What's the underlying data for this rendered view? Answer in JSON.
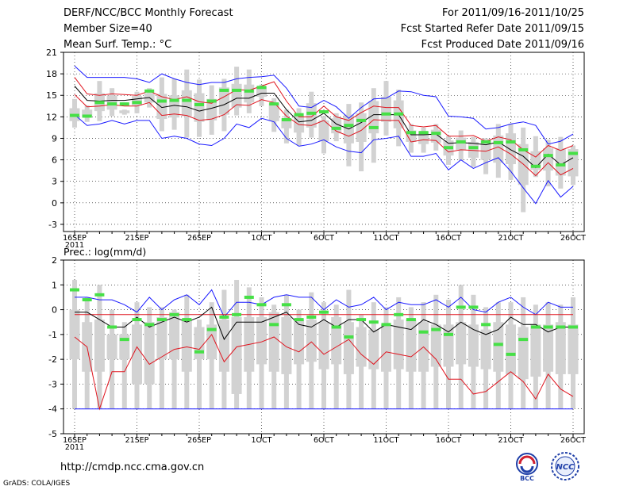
{
  "header": {
    "title": "DERF/NCC/BCC Monthly Forecast",
    "member_size": "Member Size=40",
    "variable": "Mean Surf. Temp.: °C",
    "period": "For 2011/09/16-2011/10/25",
    "refer_date": "Fcst Started Refer Date 2011/09/15",
    "produced_date": "Fcst Produced Date 2011/09/16"
  },
  "footer": {
    "url": "http://cmdp.ncc.cma.gov.cn",
    "grads": "GrADS: COLA/IGES",
    "logo_left": "BCC",
    "logo_right": "NCC"
  },
  "colors": {
    "max_min": "#1a1aff",
    "spread": "#e0141e",
    "mean": "#000000",
    "obs": "#46e046",
    "box": "#d2d2d2"
  },
  "chart_data": [
    {
      "type": "line",
      "title": "Mean Surf. Temp.: °C",
      "ylim": [
        -4,
        21
      ],
      "yticks": [
        21,
        18,
        15,
        12,
        9,
        6,
        3,
        0,
        -3
      ],
      "xticks": [
        {
          "day": 0,
          "label": "16SEP"
        },
        {
          "day": 5,
          "label": "21SEP"
        },
        {
          "day": 10,
          "label": "26SEP"
        },
        {
          "day": 15,
          "label": "1OCT"
        },
        {
          "day": 20,
          "label": "6OCT"
        },
        {
          "day": 25,
          "label": "11OCT"
        },
        {
          "day": 30,
          "label": "16OCT"
        },
        {
          "day": 35,
          "label": "21OCT"
        },
        {
          "day": 40,
          "label": "26OCT"
        }
      ],
      "year_label": "2011",
      "series": [
        {
          "name": "max",
          "values": [
            19.1,
            17.5,
            17.5,
            17.5,
            17.5,
            17.3,
            16.8,
            18.0,
            17.3,
            16.8,
            16.5,
            16.8,
            16.8,
            17.3,
            17.5,
            17.6,
            17.8,
            16.0,
            13.5,
            13.3,
            14.3,
            13.4,
            11.8,
            13.3,
            14.5,
            14.6,
            15.6,
            15.5,
            15.0,
            14.8,
            12.1,
            12.0,
            11.8,
            10.3,
            10.5,
            11.0,
            11.3,
            10.8,
            8.2,
            8.6,
            9.6
          ]
        },
        {
          "name": "spread_upper",
          "values": [
            17.5,
            15.2,
            15.0,
            15.2,
            15.1,
            15.0,
            15.6,
            14.8,
            14.4,
            14.8,
            14.1,
            13.9,
            14.8,
            15.8,
            15.7,
            16.3,
            16.9,
            14.2,
            12.0,
            12.0,
            13.5,
            12.0,
            11.5,
            12.6,
            13.5,
            13.3,
            13.3,
            10.8,
            10.6,
            10.8,
            9.3,
            9.3,
            9.4,
            8.6,
            9.2,
            8.8,
            7.4,
            6.4,
            8.0,
            7.3,
            8.0
          ]
        },
        {
          "name": "mean",
          "values": [
            16.3,
            14.3,
            14.2,
            14.3,
            14.3,
            14.5,
            14.7,
            13.3,
            13.6,
            13.4,
            12.8,
            13.2,
            13.7,
            14.6,
            14.6,
            15.3,
            15.3,
            13.0,
            11.3,
            11.5,
            12.5,
            11.0,
            10.3,
            11.2,
            12.3,
            12.3,
            12.3,
            9.5,
            9.5,
            9.6,
            8.3,
            8.4,
            8.3,
            8.1,
            8.5,
            7.4,
            6.5,
            4.9,
            6.8,
            5.3,
            6.3
          ]
        },
        {
          "name": "spread_lower",
          "values": [
            15.1,
            13.4,
            13.5,
            13.7,
            13.5,
            13.5,
            14.0,
            12.2,
            12.4,
            12.2,
            11.5,
            11.7,
            12.3,
            13.7,
            13.6,
            14.4,
            14.0,
            12.1,
            10.9,
            10.8,
            11.5,
            10.0,
            9.3,
            10.1,
            11.6,
            11.5,
            11.5,
            8.5,
            8.8,
            8.7,
            7.1,
            7.4,
            7.3,
            7.2,
            7.8,
            6.8,
            5.4,
            3.8,
            5.6,
            3.9,
            4.8
          ]
        },
        {
          "name": "min",
          "values": [
            12.3,
            10.8,
            11.0,
            11.5,
            11.0,
            11.5,
            11.5,
            9.0,
            9.3,
            9.0,
            8.2,
            8.0,
            9.0,
            11.0,
            10.5,
            11.8,
            11.3,
            9.0,
            7.9,
            8.2,
            8.8,
            7.8,
            7.2,
            7.0,
            8.8,
            9.0,
            9.3,
            6.5,
            6.5,
            6.9,
            4.6,
            6.0,
            4.8,
            5.6,
            6.3,
            4.4,
            2.1,
            -0.1,
            3.1,
            0.8,
            2.3
          ]
        },
        {
          "name": "observed",
          "values": [
            12.2,
            12.1,
            14.0,
            13.8,
            13.8,
            14.0,
            15.6,
            14.2,
            14.3,
            14.3,
            13.7,
            14.2,
            15.7,
            15.7,
            15.6,
            16.1,
            13.8,
            11.6,
            12.3,
            12.5,
            12.7,
            10.4,
            10.8,
            11.5,
            10.5,
            12.4,
            12.4,
            9.8,
            9.8,
            9.7,
            7.7,
            8.5,
            7.7,
            8.5,
            8.4,
            8.5,
            7.4,
            5.1,
            6.6,
            5.3,
            6.9
          ]
        },
        {
          "name": "box_top",
          "values": [
            14.5,
            13.6,
            17.0,
            16.0,
            13.0,
            15.5,
            16.0,
            17.5,
            17.3,
            18.6,
            17.2,
            16.4,
            17.3,
            19.0,
            18.6,
            16.5,
            14.6,
            13.0,
            13.2,
            15.5,
            12.1,
            12.5,
            13.8,
            14.0,
            16.0,
            17.0,
            15.8,
            11.0,
            10.5,
            11.0,
            9.3,
            10.1,
            9.2,
            9.0,
            11.0,
            11.0,
            10.5,
            9.3,
            8.8,
            9.2,
            8.0
          ]
        },
        {
          "name": "box_bottom",
          "values": [
            10.5,
            11.3,
            11.4,
            12.1,
            12.3,
            12.5,
            13.3,
            10.0,
            10.2,
            9.1,
            9.2,
            9.5,
            10.0,
            12.2,
            12.5,
            13.5,
            9.9,
            8.3,
            8.0,
            9.1,
            6.9,
            8.6,
            5.1,
            4.4,
            5.6,
            9.4,
            7.9,
            7.0,
            7.0,
            7.3,
            5.3,
            5.9,
            5.0,
            4.0,
            3.5,
            3.2,
            -1.3,
            3.6,
            2.3,
            2.0,
            2.5
          ]
        },
        {
          "name": "box_inner_top",
          "values": [
            13.2,
            13.0,
            15.3,
            15.0,
            12.9,
            14.9,
            15.3,
            15.2,
            15.0,
            15.7,
            15.3,
            14.5,
            16.1,
            16.6,
            16.5,
            16.2,
            13.9,
            11.8,
            12.1,
            13.9,
            11.5,
            11.8,
            12.3,
            12.5,
            14.2,
            14.8,
            14.3,
            10.1,
            10.0,
            10.2,
            8.7,
            9.1,
            8.5,
            8.8,
            9.4,
            9.7,
            8.2,
            7.2,
            7.6,
            7.6,
            7.5
          ]
        },
        {
          "name": "box_inner_bottom",
          "values": [
            11.4,
            11.9,
            12.8,
            13.0,
            12.5,
            13.6,
            14.0,
            11.7,
            11.9,
            12.1,
            11.3,
            11.5,
            12.3,
            13.3,
            14.0,
            14.8,
            11.4,
            10.4,
            9.8,
            10.5,
            8.6,
            9.7,
            8.3,
            8.5,
            9.7,
            11.3,
            10.4,
            8.5,
            8.2,
            8.4,
            6.6,
            7.4,
            6.3,
            6.0,
            5.6,
            5.4,
            2.5,
            4.6,
            4.5,
            3.8,
            3.7
          ]
        }
      ]
    },
    {
      "type": "line",
      "title": "Prec.: log(mm/d)",
      "ylim": [
        -5,
        2
      ],
      "yticks": [
        2,
        1,
        0,
        -1,
        -2,
        -3,
        -4,
        -5
      ],
      "xticks": [
        {
          "day": 0,
          "label": "16SEP"
        },
        {
          "day": 5,
          "label": "21SEP"
        },
        {
          "day": 10,
          "label": "26SEP"
        },
        {
          "day": 15,
          "label": "1OCT"
        },
        {
          "day": 20,
          "label": "6OCT"
        },
        {
          "day": 25,
          "label": "11OCT"
        },
        {
          "day": 30,
          "label": "16OCT"
        },
        {
          "day": 35,
          "label": "21OCT"
        },
        {
          "day": 40,
          "label": "26OCT"
        }
      ],
      "year_label": "2011",
      "series": [
        {
          "name": "max",
          "values": [
            0.5,
            0.5,
            0.4,
            0.4,
            0.2,
            -0.1,
            0.5,
            0.0,
            0.4,
            0.6,
            0.2,
            0.8,
            -0.3,
            0.3,
            0.3,
            0.2,
            0.5,
            0.6,
            0.5,
            0.5,
            0.0,
            0.4,
            0.1,
            0.2,
            0.5,
            0.0,
            0.3,
            0.2,
            0.2,
            0.4,
            0.1,
            0.5,
            0.0,
            -0.1,
            0.3,
            0.5,
            0.1,
            -0.2,
            0.3,
            0.1,
            0.1
          ]
        },
        {
          "name": "spread_upper",
          "values": [
            -0.2,
            -0.2,
            -0.2,
            -0.2,
            -0.2,
            -0.2,
            -0.2,
            -0.2,
            -0.2,
            -0.2,
            -0.2,
            -0.2,
            -0.2,
            -0.2,
            -0.2,
            -0.2,
            -0.2,
            -0.2,
            -0.2,
            -0.2,
            -0.2,
            -0.2,
            -0.2,
            -0.2,
            -0.2,
            -0.2,
            -0.2,
            -0.2,
            -0.2,
            -0.2,
            -0.2,
            -0.2,
            -0.2,
            -0.2,
            -0.2,
            -0.2,
            -0.2,
            -0.2,
            -0.2,
            -0.2,
            -0.2
          ]
        },
        {
          "name": "mean",
          "values": [
            -0.1,
            -0.1,
            -0.4,
            -0.7,
            -0.7,
            -0.3,
            -0.7,
            -0.5,
            -0.3,
            -0.5,
            -0.3,
            0.1,
            -1.2,
            -0.5,
            -0.5,
            -0.5,
            -0.3,
            -0.1,
            -0.6,
            -0.7,
            -0.4,
            -0.7,
            -0.4,
            -0.4,
            -0.9,
            -0.6,
            -0.7,
            -0.8,
            -0.4,
            -0.6,
            -0.9,
            -0.5,
            -0.8,
            -1.0,
            -0.8,
            -0.3,
            -0.6,
            -0.6,
            -0.9,
            -0.7,
            -0.7
          ]
        },
        {
          "name": "spread_lower",
          "values": [
            -1.1,
            -1.5,
            -4.0,
            -2.5,
            -2.5,
            -1.5,
            -2.2,
            -1.9,
            -1.6,
            -1.5,
            -1.6,
            -1.0,
            -2.1,
            -1.5,
            -1.4,
            -1.3,
            -1.1,
            -1.5,
            -1.7,
            -1.3,
            -1.8,
            -1.5,
            -1.2,
            -1.8,
            -2.2,
            -1.7,
            -1.8,
            -1.9,
            -1.5,
            -2.0,
            -2.8,
            -2.8,
            -3.4,
            -3.3,
            -2.9,
            -2.5,
            -2.9,
            -3.6,
            -2.6,
            -3.2,
            -3.5
          ]
        },
        {
          "name": "min",
          "values": [
            -4.0,
            -4.0,
            -4.0,
            -4.0,
            -4.0,
            -4.0,
            -4.0,
            -4.0,
            -4.0,
            -4.0,
            -4.0,
            -4.0,
            -4.0,
            -4.0,
            -4.0,
            -4.0,
            -4.0,
            -4.0,
            -4.0,
            -4.0,
            -4.0,
            -4.0,
            -4.0,
            -4.0,
            -4.0,
            -4.0,
            -4.0,
            -4.0,
            -4.0,
            -4.0,
            -4.0,
            -4.0,
            -4.0,
            -4.0,
            -4.0,
            -4.0,
            -4.0,
            -4.0,
            -4.0,
            -4.0,
            -4.0
          ]
        },
        {
          "name": "observed",
          "values": [
            0.8,
            0.4,
            0.6,
            -0.7,
            -1.2,
            -0.4,
            -0.6,
            -0.4,
            -0.2,
            -0.4,
            -1.7,
            -0.8,
            -0.3,
            -0.2,
            0.5,
            0.2,
            -0.6,
            0.2,
            -0.4,
            -0.3,
            -0.1,
            -0.7,
            -1.1,
            -0.4,
            -0.5,
            -0.6,
            -0.2,
            -0.4,
            -0.9,
            -0.8,
            -1.0,
            0.1,
            0.1,
            -0.6,
            -1.4,
            -1.8,
            -1.2,
            -0.7,
            -0.7,
            -0.7,
            -0.7
          ]
        },
        {
          "name": "box_top",
          "values": [
            1.2,
            0.5,
            1.0,
            0.0,
            -0.5,
            0.3,
            0.1,
            0.1,
            0.0,
            0.6,
            -0.4,
            0.3,
            0.8,
            1.2,
            0.9,
            0.5,
            0.2,
            0.6,
            0.0,
            0.7,
            0.3,
            0.2,
            0.8,
            -0.2,
            0.3,
            0.1,
            0.5,
            0.1,
            0.3,
            0.6,
            0.4,
            1.0,
            0.6,
            0.1,
            0.3,
            0.3,
            0.5,
            0.2,
            0.3,
            0.2,
            0.5
          ]
        },
        {
          "name": "box_bottom",
          "values": [
            -4.0,
            -4.0,
            -4.0,
            -4.0,
            -4.0,
            -4.0,
            -4.0,
            -4.0,
            -4.0,
            -4.0,
            -4.0,
            -4.0,
            -4.0,
            -4.0,
            -4.0,
            -4.0,
            -4.0,
            -4.0,
            -4.0,
            -4.0,
            -4.0,
            -4.0,
            -4.0,
            -4.0,
            -4.0,
            -4.0,
            -4.0,
            -4.0,
            -4.0,
            -4.0,
            -4.0,
            -4.0,
            -4.0,
            -4.0,
            -4.0,
            -4.0,
            -4.0,
            -4.0,
            -4.0,
            -4.0,
            -4.0
          ]
        },
        {
          "name": "box_inner_top",
          "values": [
            0.0,
            -0.5,
            -0.4,
            -1.0,
            -1.0,
            -0.6,
            -0.5,
            -0.3,
            -0.1,
            -0.4,
            -0.7,
            -0.6,
            -0.4,
            -0.3,
            -0.3,
            -0.3,
            -0.1,
            -0.3,
            -0.4,
            -0.4,
            -0.5,
            -0.3,
            -0.5,
            -0.7,
            -0.8,
            -0.6,
            -0.4,
            -0.4,
            -0.5,
            -0.6,
            -0.6,
            -0.5,
            -0.6,
            -0.8,
            -0.5,
            -0.6,
            -0.7,
            -0.6,
            -0.6,
            -0.5,
            -0.6
          ]
        },
        {
          "name": "box_inner_bottom",
          "values": [
            -2.0,
            -2.5,
            -2.5,
            -2.0,
            -2.0,
            -3.0,
            -3.0,
            -2.0,
            -2.0,
            -2.5,
            -2.0,
            -2.0,
            -2.5,
            -3.4,
            -2.5,
            -2.2,
            -2.5,
            -2.6,
            -2.2,
            -2.1,
            -2.4,
            -2.2,
            -2.6,
            -2.3,
            -2.4,
            -2.5,
            -2.4,
            -2.5,
            -2.5,
            -2.3,
            -2.3,
            -2.2,
            -2.3,
            -2.4,
            -2.5,
            -2.6,
            -2.8,
            -2.7,
            -2.5,
            -2.6,
            -2.6
          ]
        }
      ]
    }
  ]
}
